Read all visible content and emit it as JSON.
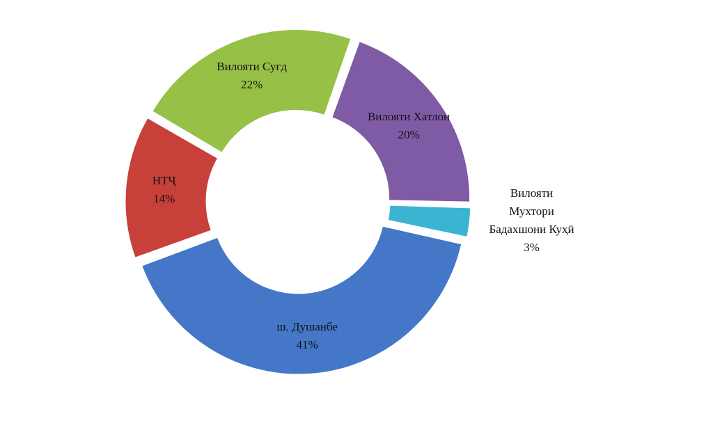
{
  "chart_data": {
    "type": "donut",
    "categories": [
      "Вилояти Хатлон",
      "Вилояти Мухтори Бадахшони Куҳӣ",
      "ш. Душанбе",
      "НТҶ",
      "Вилояти Суғд"
    ],
    "values": [
      20,
      3,
      41,
      14,
      22
    ],
    "value_labels": [
      "20%",
      "3%",
      "41%",
      "14%",
      "22%"
    ],
    "colors": [
      "#7f5ba6",
      "#3bb4d1",
      "#4477c8",
      "#c8403a",
      "#97c046"
    ]
  }
}
